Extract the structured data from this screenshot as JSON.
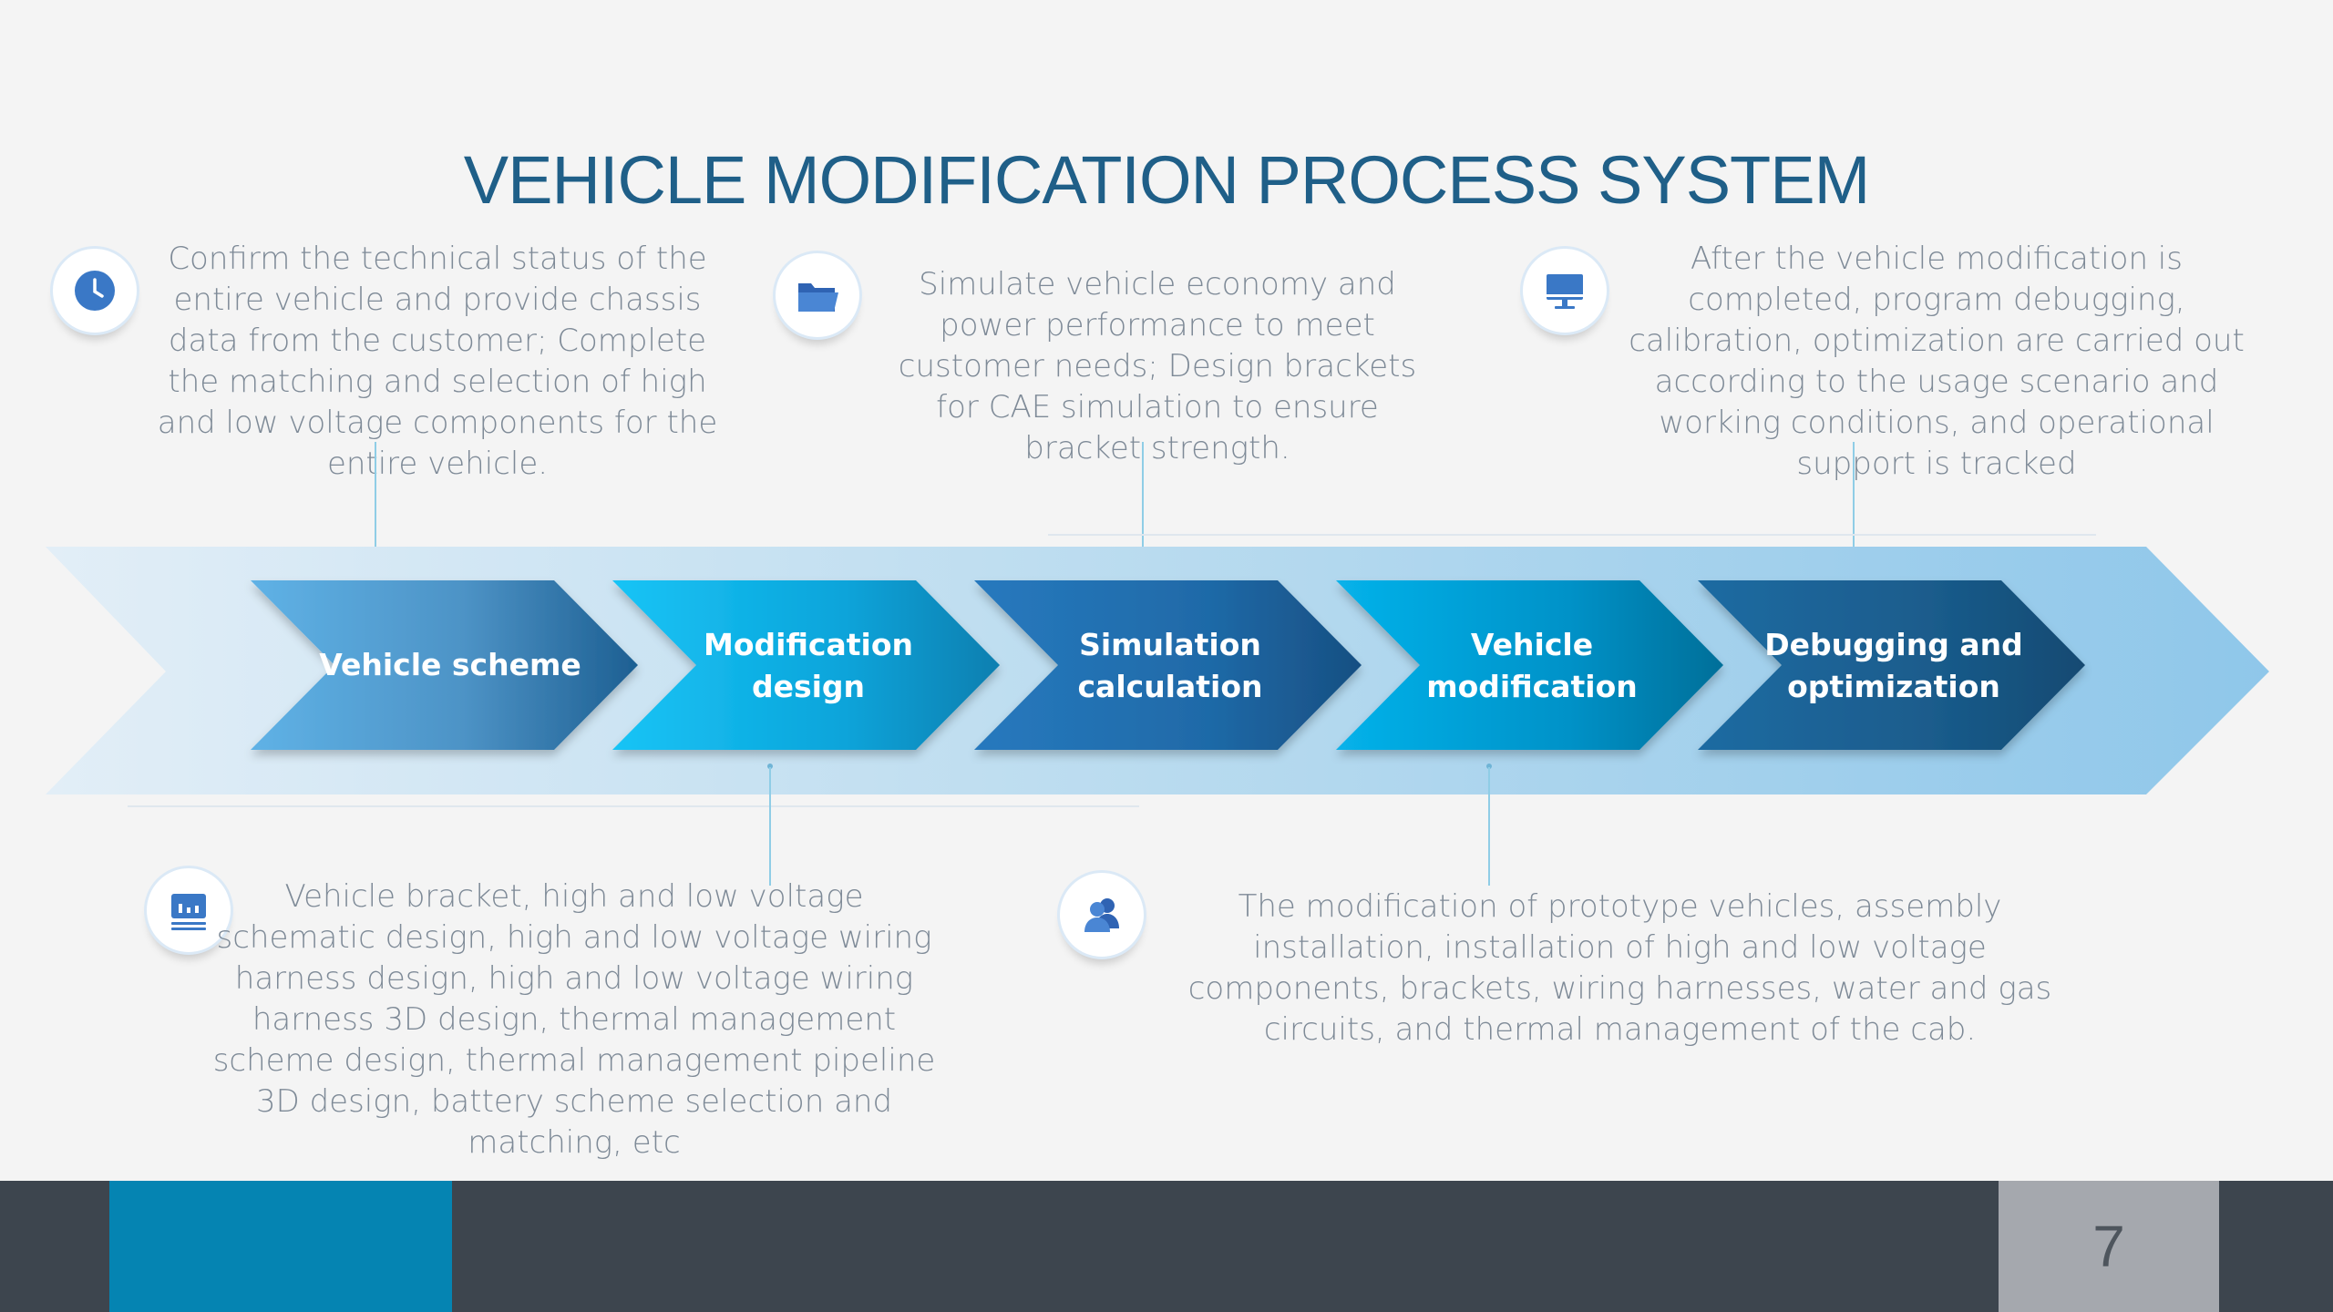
{
  "title": "VEHICLE MODIFICATION PROCESS SYSTEM",
  "steps": [
    {
      "label": "Vehicle scheme"
    },
    {
      "label": "Modification design"
    },
    {
      "label": "Simulation calculation"
    },
    {
      "label": "Vehicle modification"
    },
    {
      "label": "Debugging and optimization"
    }
  ],
  "descriptions": {
    "vehicle_scheme": "Confirm the technical status of the entire vehicle and provide chassis data from the customer; Complete the matching and selection of high and low voltage components for the entire vehicle.",
    "simulation_calculation": "Simulate vehicle economy and power performance to meet customer needs; Design brackets for CAE simulation to ensure bracket strength.",
    "debugging_optimization": "After the vehicle modification is completed, program debugging, calibration, optimization are carried out according to the usage scenario and working conditions, and operational support is tracked",
    "modification_design": "Vehicle bracket, high and low voltage schematic design, high and low voltage wiring harness design, high and low voltage wiring harness 3D design, thermal management scheme design, thermal management pipeline 3D design, battery scheme selection and matching, etc",
    "vehicle_modification": "The modification of prototype vehicles, assembly installation, installation of high and low voltage components, brackets, wiring harnesses, water and gas circuits, and thermal management of the cab."
  },
  "icons": [
    "clock-icon",
    "folder-icon",
    "monitor-icon",
    "chart-icon",
    "users-icon"
  ],
  "colors": {
    "title": "#1f5f88",
    "text": "#7e8a97",
    "footer": "#3d454e",
    "footer_accent": "#0584b2",
    "page_box": "#a5a8ae",
    "icon": "#3a78c6"
  },
  "footer": {
    "page_number": "7"
  }
}
